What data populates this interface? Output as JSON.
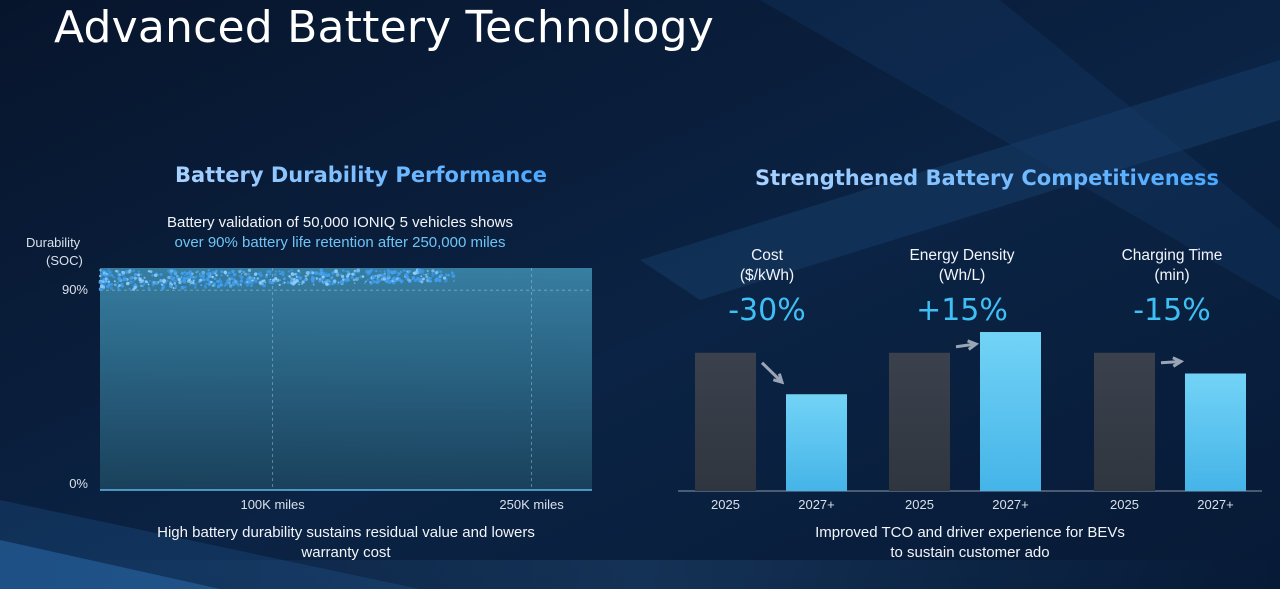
{
  "slide_title": "Advanced Battery Technology",
  "left_panel": {
    "heading": "Battery Durability Performance",
    "subtitle_line1": "Battery validation of 50,000 IONIQ 5 vehicles shows",
    "subtitle_line2": "over 90% battery life retention after 250,000 miles",
    "footer_line1": "High battery durability sustains residual value and lowers",
    "footer_line2": "warranty cost"
  },
  "right_panel": {
    "heading": "Strengthened Battery Competitiveness",
    "footer_line1": "Improved TCO and driver experience for BEVs",
    "footer_line2": "to sustain customer ado"
  },
  "colors": {
    "accent_blue": "#3fc0f5",
    "bar_current": "#363d49",
    "bar_future": "#5cc9f2",
    "dot_blue": "#3f9ef0",
    "background": "#0a1a33"
  },
  "chart_data": [
    {
      "type": "scatter",
      "ylabel_line1": "Durability",
      "ylabel_line2": "(SOC)",
      "ylim": [
        0,
        100
      ],
      "y_ticks": [
        {
          "value": 0,
          "label": "0%"
        },
        {
          "value": 90,
          "label": "90%"
        }
      ],
      "x_ticks": [
        {
          "value": 100000,
          "label": "100K miles"
        },
        {
          "value": 250000,
          "label": "250K miles"
        }
      ],
      "xlim": [
        0,
        285000
      ],
      "series_band": {
        "x_min": 0,
        "x_max": 205000,
        "y_min": 90,
        "y_max": 99
      },
      "point_count": 700
    },
    {
      "type": "bar",
      "groups": [
        {
          "label_line1": "Cost",
          "label_line2": "($/kWh)",
          "value_label": "-30%",
          "categories": [
            "2025",
            "2027+"
          ],
          "values": [
            100,
            70
          ],
          "direction": "down"
        },
        {
          "label_line1": "Energy Density",
          "label_line2": "(Wh/L)",
          "value_label": "+15%",
          "categories": [
            "2025",
            "2027+"
          ],
          "values": [
            100,
            115
          ],
          "direction": "up"
        },
        {
          "label_line1": "Charging Time",
          "label_line2": "(min)",
          "value_label": "-15%",
          "categories": [
            "2025",
            "2027+"
          ],
          "values": [
            100,
            85
          ],
          "direction": "down"
        }
      ]
    }
  ]
}
